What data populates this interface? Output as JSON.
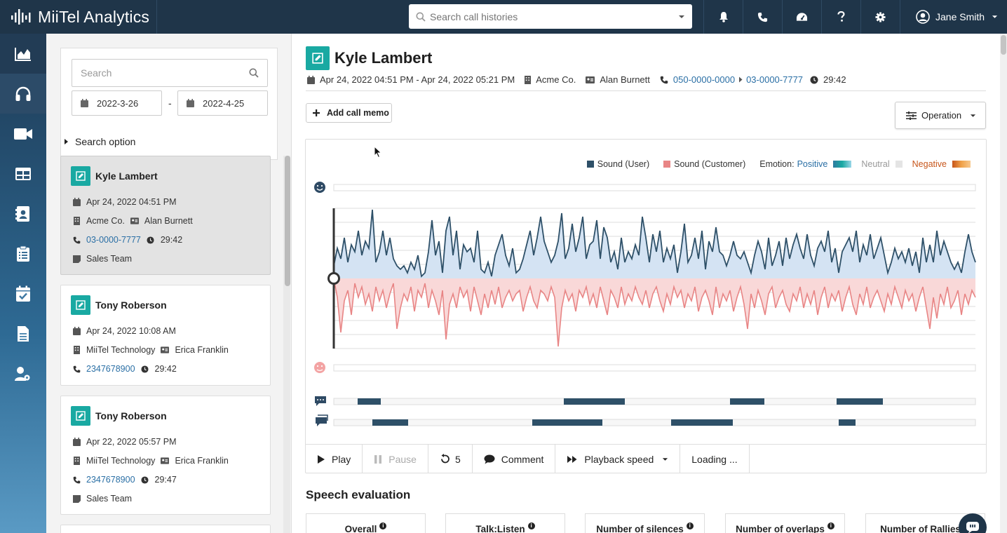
{
  "app": {
    "brand": "MiiTel Analytics"
  },
  "topbar": {
    "search_placeholder": "Search call histories",
    "user_name": "Jane Smith"
  },
  "sidebar": {
    "search_placeholder": "Search",
    "date_from": "2022-3-26",
    "date_separator": "-",
    "date_to": "2022-4-25",
    "search_option_label": "Search option",
    "calls": [
      {
        "name": "Kyle Lambert",
        "datetime": "Apr 24, 2022 04:51 PM",
        "company": "Acme Co.",
        "contact": "Alan Burnett",
        "phone": "03-0000-7777",
        "duration": "29:42",
        "team": "Sales Team"
      },
      {
        "name": "Tony Roberson",
        "datetime": "Apr 24, 2022 10:08 AM",
        "company": "MiiTel Technology",
        "contact": "Erica Franklin",
        "phone": "2347678900",
        "duration": "29:42"
      },
      {
        "name": "Tony Roberson",
        "datetime": "Apr 22, 2022 05:57 PM",
        "company": "MiiTel Technology",
        "contact": "Erica Franklin",
        "phone": "2347678900",
        "duration": "29:47",
        "team": "Sales Team"
      }
    ]
  },
  "main": {
    "title": "Kyle Lambert",
    "meta": {
      "datetime_range": "Apr 24, 2022 04:51 PM - Apr 24, 2022 05:21 PM",
      "company": "Acme Co.",
      "contact": "Alan Burnett",
      "from_phone": "050-0000-0000",
      "to_phone": "03-0000-7777",
      "duration": "29:42"
    },
    "add_memo_label": "Add call memo",
    "operation_label": "Operation",
    "legend": {
      "user": "Sound (User)",
      "customer": "Sound (Customer)",
      "emotion_label": "Emotion:",
      "positive": "Positive",
      "neutral": "Neutral",
      "negative": "Negative"
    },
    "colors": {
      "user": "#2e5068",
      "user_fill": "#d4e3f3",
      "customer": "#e88585",
      "customer_fill": "#f9d8d8",
      "teal": "#19a9a2",
      "nav": "#1f3549"
    },
    "controls": {
      "play": "Play",
      "pause": "Pause",
      "rewind": "5",
      "comment": "Comment",
      "speed": "Playback speed",
      "loading": "Loading ..."
    },
    "speech_eval_title": "Speech evaluation",
    "eval_cards": [
      "Overall",
      "Talk:Listen",
      "Number of silences",
      "Number of overlaps",
      "Number of Rallies"
    ]
  }
}
